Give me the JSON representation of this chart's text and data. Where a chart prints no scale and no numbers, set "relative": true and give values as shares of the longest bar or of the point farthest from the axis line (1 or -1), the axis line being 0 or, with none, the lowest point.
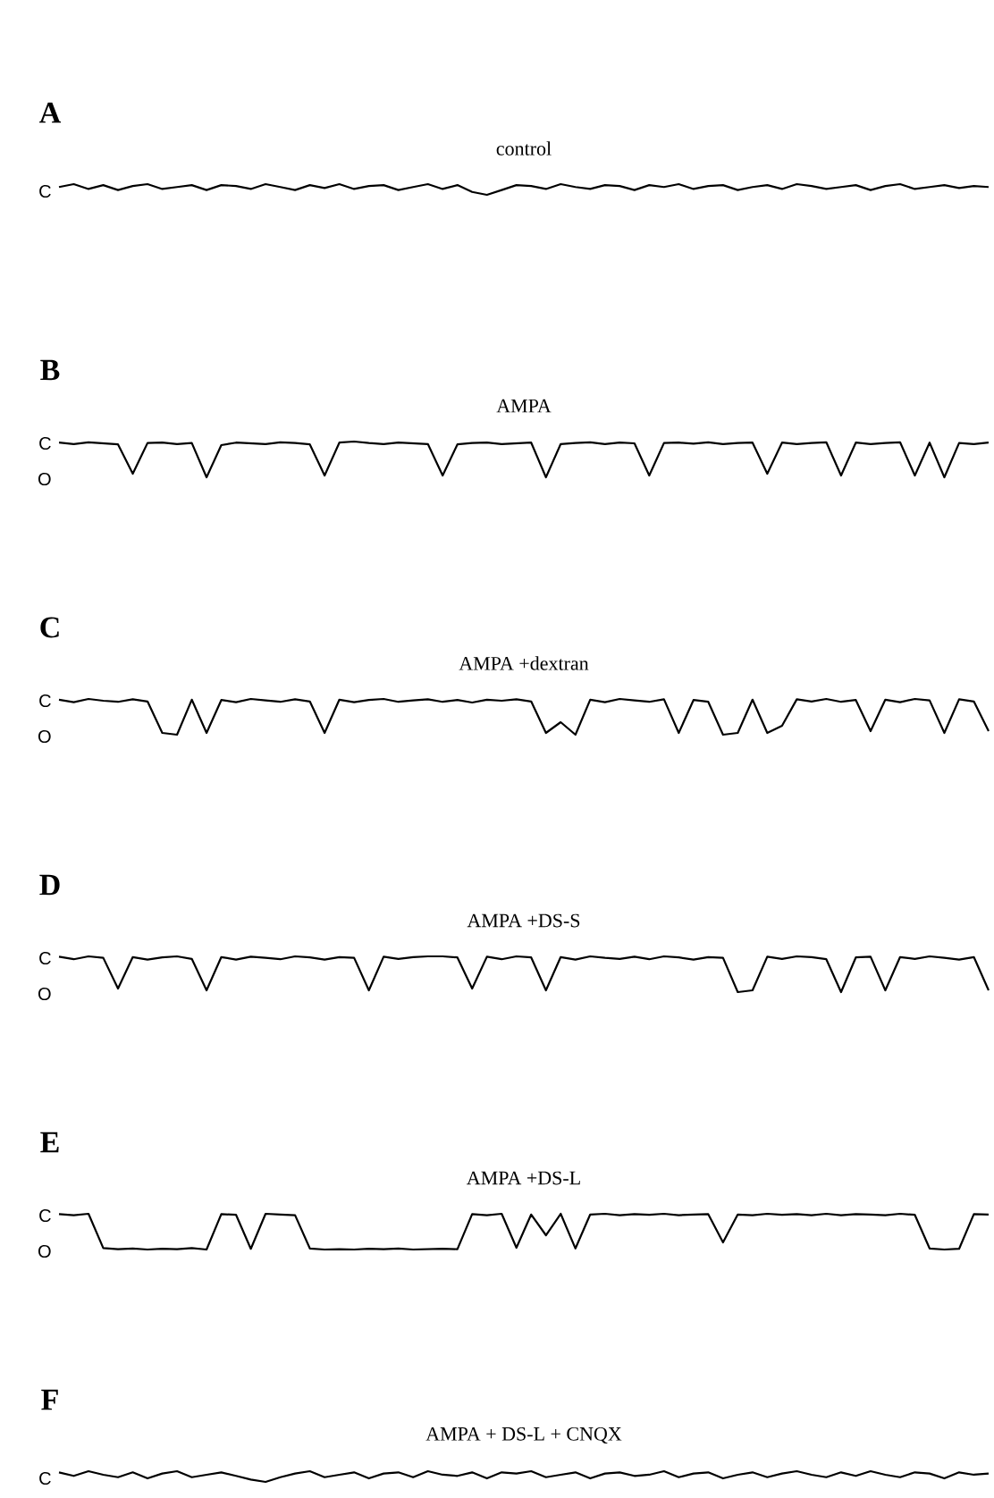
{
  "chart_data": [
    {
      "type": "line",
      "title": "A",
      "subtitle": "control",
      "color": "#000000",
      "relative": true,
      "annotations": [
        "C"
      ],
      "categories": [
        null,
        null,
        null,
        null,
        null,
        null,
        null,
        null,
        null,
        null,
        null,
        null,
        null,
        null,
        null,
        null,
        null,
        null,
        null,
        null,
        null,
        null,
        null,
        null,
        null,
        null,
        null,
        null,
        null,
        null,
        null,
        null,
        null,
        null,
        null,
        null,
        null,
        null,
        null,
        null,
        null,
        null,
        null,
        null,
        null,
        null,
        null,
        null,
        null,
        null,
        null,
        null,
        null,
        null,
        null,
        null,
        null,
        null,
        null,
        null,
        null,
        null,
        null,
        null
      ],
      "values": [
        0.73,
        1,
        0.55,
        0.91,
        0.45,
        0.82,
        1,
        0.55,
        0.73,
        0.91,
        0.45,
        0.91,
        0.82,
        0.55,
        1,
        0.73,
        0.45,
        0.91,
        0.64,
        1,
        0.55,
        0.82,
        0.91,
        0.45,
        0.73,
        1,
        0.55,
        0.91,
        0.27,
        0,
        0.45,
        0.91,
        0.82,
        0.55,
        1,
        0.73,
        0.55,
        0.91,
        0.82,
        0.45,
        0.91,
        0.73,
        1,
        0.55,
        0.82,
        0.91,
        0.45,
        0.73,
        0.91,
        0.55,
        1,
        0.82,
        0.55,
        0.73,
        0.91,
        0.45,
        0.82,
        1,
        0.55,
        0.73,
        0.91,
        0.64,
        0.82,
        0.73
      ]
    },
    {
      "type": "line",
      "title": "B",
      "subtitle": "AMPA",
      "color": "#000000",
      "relative": true,
      "annotations": [
        "C",
        "O"
      ],
      "categories": [
        null,
        null,
        null,
        null,
        null,
        null,
        null,
        null,
        null,
        null,
        null,
        null,
        null,
        null,
        null,
        null,
        null,
        null,
        null,
        null,
        null,
        null,
        null,
        null,
        null,
        null,
        null,
        null,
        null,
        null,
        null,
        null,
        null,
        null,
        null,
        null,
        null,
        null,
        null,
        null,
        null,
        null,
        null,
        null,
        null,
        null,
        null,
        null,
        null,
        null,
        null,
        null,
        null,
        null,
        null,
        null,
        null,
        null,
        null,
        null,
        null,
        null,
        null,
        null
      ],
      "values": [
        0.97,
        0.93,
        0.98,
        0.95,
        0.92,
        0.1,
        0.96,
        0.97,
        0.93,
        0.96,
        0,
        0.9,
        0.97,
        0.95,
        0.93,
        0.98,
        0.96,
        0.92,
        0.05,
        0.97,
        1,
        0.96,
        0.93,
        0.97,
        0.95,
        0.93,
        0.05,
        0.92,
        0.96,
        0.97,
        0.93,
        0.95,
        0.97,
        0,
        0.93,
        0.96,
        0.98,
        0.93,
        0.97,
        0.95,
        0.05,
        0.96,
        0.97,
        0.94,
        0.98,
        0.93,
        0.96,
        0.97,
        0.1,
        0.97,
        0.93,
        0.96,
        0.98,
        0.05,
        0.97,
        0.93,
        0.96,
        0.98,
        0.05,
        0.97,
        0,
        0.96,
        0.93,
        0.97
      ]
    },
    {
      "type": "line",
      "title": "C",
      "subtitle": "AMPA +dextran",
      "color": "#000000",
      "relative": true,
      "annotations": [
        "C",
        "O"
      ],
      "categories": [
        null,
        null,
        null,
        null,
        null,
        null,
        null,
        null,
        null,
        null,
        null,
        null,
        null,
        null,
        null,
        null,
        null,
        null,
        null,
        null,
        null,
        null,
        null,
        null,
        null,
        null,
        null,
        null,
        null,
        null,
        null,
        null,
        null,
        null,
        null,
        null,
        null,
        null,
        null,
        null,
        null,
        null,
        null,
        null,
        null,
        null,
        null,
        null,
        null,
        null,
        null,
        null,
        null,
        null,
        null,
        null,
        null,
        null,
        null,
        null,
        null,
        null,
        null,
        null
      ],
      "values": [
        0.98,
        0.91,
        1,
        0.95,
        0.92,
        0.99,
        0.93,
        0.05,
        0,
        0.98,
        0.05,
        0.97,
        0.91,
        1,
        0.96,
        0.92,
        0.99,
        0.93,
        0.05,
        0.98,
        0.91,
        0.97,
        1,
        0.92,
        0.96,
        0.99,
        0.92,
        0.97,
        0.9,
        0.98,
        0.95,
        0.99,
        0.93,
        0.05,
        0.35,
        0,
        0.98,
        0.91,
        1,
        0.96,
        0.92,
        0.99,
        0.05,
        0.97,
        0.92,
        0,
        0.05,
        0.98,
        0.05,
        0.25,
        0.99,
        0.93,
        1,
        0.92,
        0.97,
        0.1,
        0.98,
        0.91,
        1,
        0.96,
        0.05,
        0.99,
        0.93,
        0.1
      ]
    },
    {
      "type": "line",
      "title": "D",
      "subtitle": "AMPA +DS-S",
      "color": "#000000",
      "relative": true,
      "annotations": [
        "C",
        "O"
      ],
      "categories": [
        null,
        null,
        null,
        null,
        null,
        null,
        null,
        null,
        null,
        null,
        null,
        null,
        null,
        null,
        null,
        null,
        null,
        null,
        null,
        null,
        null,
        null,
        null,
        null,
        null,
        null,
        null,
        null,
        null,
        null,
        null,
        null,
        null,
        null,
        null,
        null,
        null,
        null,
        null,
        null,
        null,
        null,
        null,
        null,
        null,
        null,
        null,
        null,
        null,
        null,
        null,
        null,
        null,
        null,
        null,
        null,
        null,
        null,
        null,
        null,
        null,
        null,
        null,
        null
      ],
      "values": [
        0.99,
        0.92,
        1,
        0.96,
        0.1,
        0.98,
        0.91,
        0.97,
        1,
        0.93,
        0.05,
        0.98,
        0.91,
        0.99,
        0.96,
        0.92,
        1,
        0.97,
        0.91,
        0.98,
        0.96,
        0.05,
        0.99,
        0.93,
        0.98,
        1,
        1,
        0.97,
        0.1,
        0.99,
        0.92,
        1,
        0.97,
        0.05,
        0.98,
        0.91,
        1,
        0.96,
        0.93,
        0.99,
        0.92,
        1,
        0.97,
        0.91,
        0.98,
        0.96,
        0,
        0.05,
        0.99,
        0.93,
        1,
        0.98,
        0.92,
        0,
        0.97,
        0.99,
        0.05,
        0.98,
        0.93,
        1,
        0.96,
        0.91,
        0.98,
        0.05
      ]
    },
    {
      "type": "line",
      "title": "E",
      "subtitle": "AMPA +DS-L",
      "color": "#000000",
      "relative": true,
      "annotations": [
        "C",
        "O"
      ],
      "categories": [
        null,
        null,
        null,
        null,
        null,
        null,
        null,
        null,
        null,
        null,
        null,
        null,
        null,
        null,
        null,
        null,
        null,
        null,
        null,
        null,
        null,
        null,
        null,
        null,
        null,
        null,
        null,
        null,
        null,
        null,
        null,
        null,
        null,
        null,
        null,
        null,
        null,
        null,
        null,
        null,
        null,
        null,
        null,
        null,
        null,
        null,
        null,
        null,
        null,
        null,
        null,
        null,
        null,
        null,
        null,
        null,
        null,
        null,
        null,
        null,
        null,
        null,
        null,
        null
      ],
      "values": [
        0.99,
        0.96,
        1,
        0.04,
        0.01,
        0.03,
        0,
        0.02,
        0.01,
        0.04,
        0,
        0.99,
        0.97,
        0.02,
        1,
        0.98,
        0.96,
        0.03,
        0,
        0.01,
        0,
        0.02,
        0.01,
        0.03,
        0,
        0.01,
        0.02,
        0.01,
        0.99,
        0.96,
        1,
        0.05,
        0.98,
        0.4,
        1,
        0.03,
        0.98,
        1,
        0.96,
        0.99,
        0.97,
        1,
        0.96,
        0.98,
        0.99,
        0.2,
        0.98,
        0.96,
        1,
        0.97,
        0.99,
        0.96,
        1,
        0.96,
        0.99,
        0.98,
        0.96,
        1,
        0.97,
        0.03,
        0,
        0.02,
        0.99,
        0.98
      ]
    },
    {
      "type": "line",
      "title": "F",
      "subtitle": "AMPA + DS-L + CNQX",
      "color": "#000000",
      "relative": true,
      "annotations": [
        "C"
      ],
      "categories": [
        null,
        null,
        null,
        null,
        null,
        null,
        null,
        null,
        null,
        null,
        null,
        null,
        null,
        null,
        null,
        null,
        null,
        null,
        null,
        null,
        null,
        null,
        null,
        null,
        null,
        null,
        null,
        null,
        null,
        null,
        null,
        null,
        null,
        null,
        null,
        null,
        null,
        null,
        null,
        null,
        null,
        null,
        null,
        null,
        null,
        null,
        null,
        null,
        null,
        null,
        null,
        null,
        null,
        null,
        null,
        null,
        null,
        null,
        null,
        null,
        null,
        null,
        null,
        null
      ],
      "values": [
        0.89,
        0.56,
        1,
        0.67,
        0.44,
        0.89,
        0.33,
        0.78,
        1,
        0.44,
        0.67,
        0.89,
        0.56,
        0.22,
        0,
        0.44,
        0.78,
        1,
        0.44,
        0.67,
        0.89,
        0.33,
        0.78,
        0.89,
        0.44,
        1,
        0.67,
        0.56,
        0.89,
        0.33,
        0.89,
        0.78,
        1,
        0.44,
        0.67,
        0.89,
        0.33,
        0.78,
        0.89,
        0.56,
        0.67,
        1,
        0.44,
        0.78,
        0.89,
        0.33,
        0.67,
        0.89,
        0.44,
        0.78,
        1,
        0.67,
        0.44,
        0.89,
        0.56,
        1,
        0.67,
        0.44,
        0.89,
        0.78,
        0.33,
        0.89,
        0.67,
        0.78
      ]
    }
  ]
}
